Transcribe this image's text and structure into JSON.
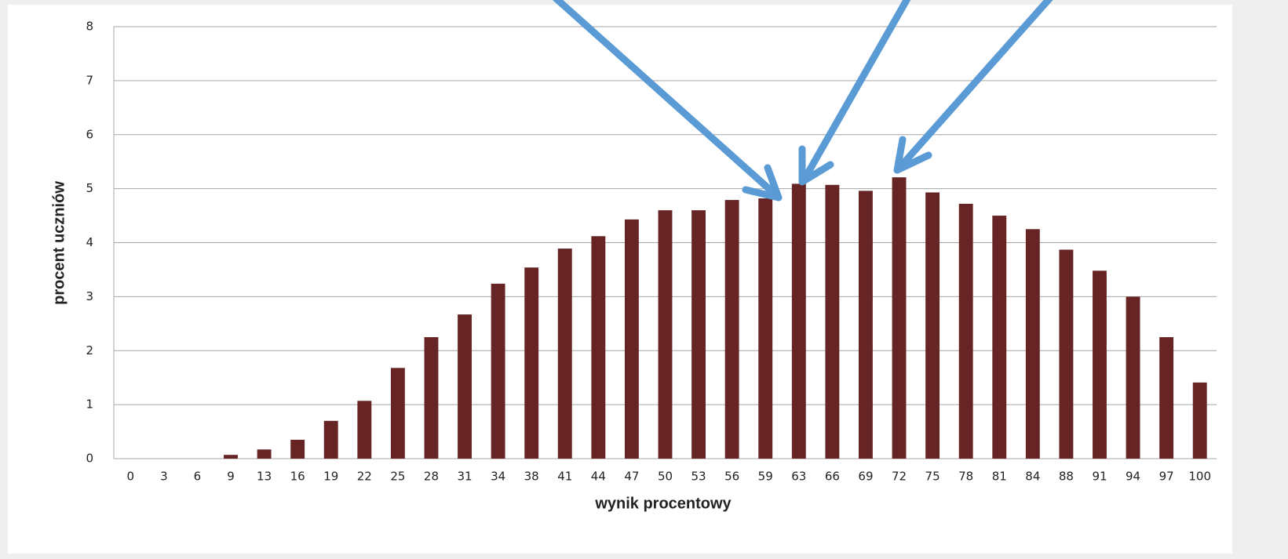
{
  "chart_data": {
    "type": "bar",
    "x_label": "wynik procentowy",
    "y_label": "procent uczniów",
    "categories": [
      "0",
      "3",
      "6",
      "9",
      "13",
      "16",
      "19",
      "22",
      "25",
      "28",
      "31",
      "34",
      "38",
      "41",
      "44",
      "47",
      "50",
      "53",
      "56",
      "59",
      "63",
      "66",
      "69",
      "72",
      "75",
      "78",
      "81",
      "84",
      "88",
      "91",
      "94",
      "97",
      "100"
    ],
    "values": [
      0,
      0,
      0,
      0.07,
      0.17,
      0.35,
      0.7,
      1.07,
      1.68,
      2.25,
      2.67,
      3.24,
      3.54,
      3.89,
      4.12,
      4.43,
      4.6,
      4.6,
      4.79,
      4.82,
      5.09,
      5.07,
      4.96,
      5.21,
      4.93,
      4.72,
      4.5,
      4.25,
      3.87,
      3.48,
      3.0,
      2.25,
      1.41
    ],
    "color": "#662424",
    "ylim": [
      0,
      8
    ],
    "yticks": [
      0,
      1,
      2,
      3,
      4,
      5,
      6,
      7,
      8
    ],
    "grid": true
  }
}
